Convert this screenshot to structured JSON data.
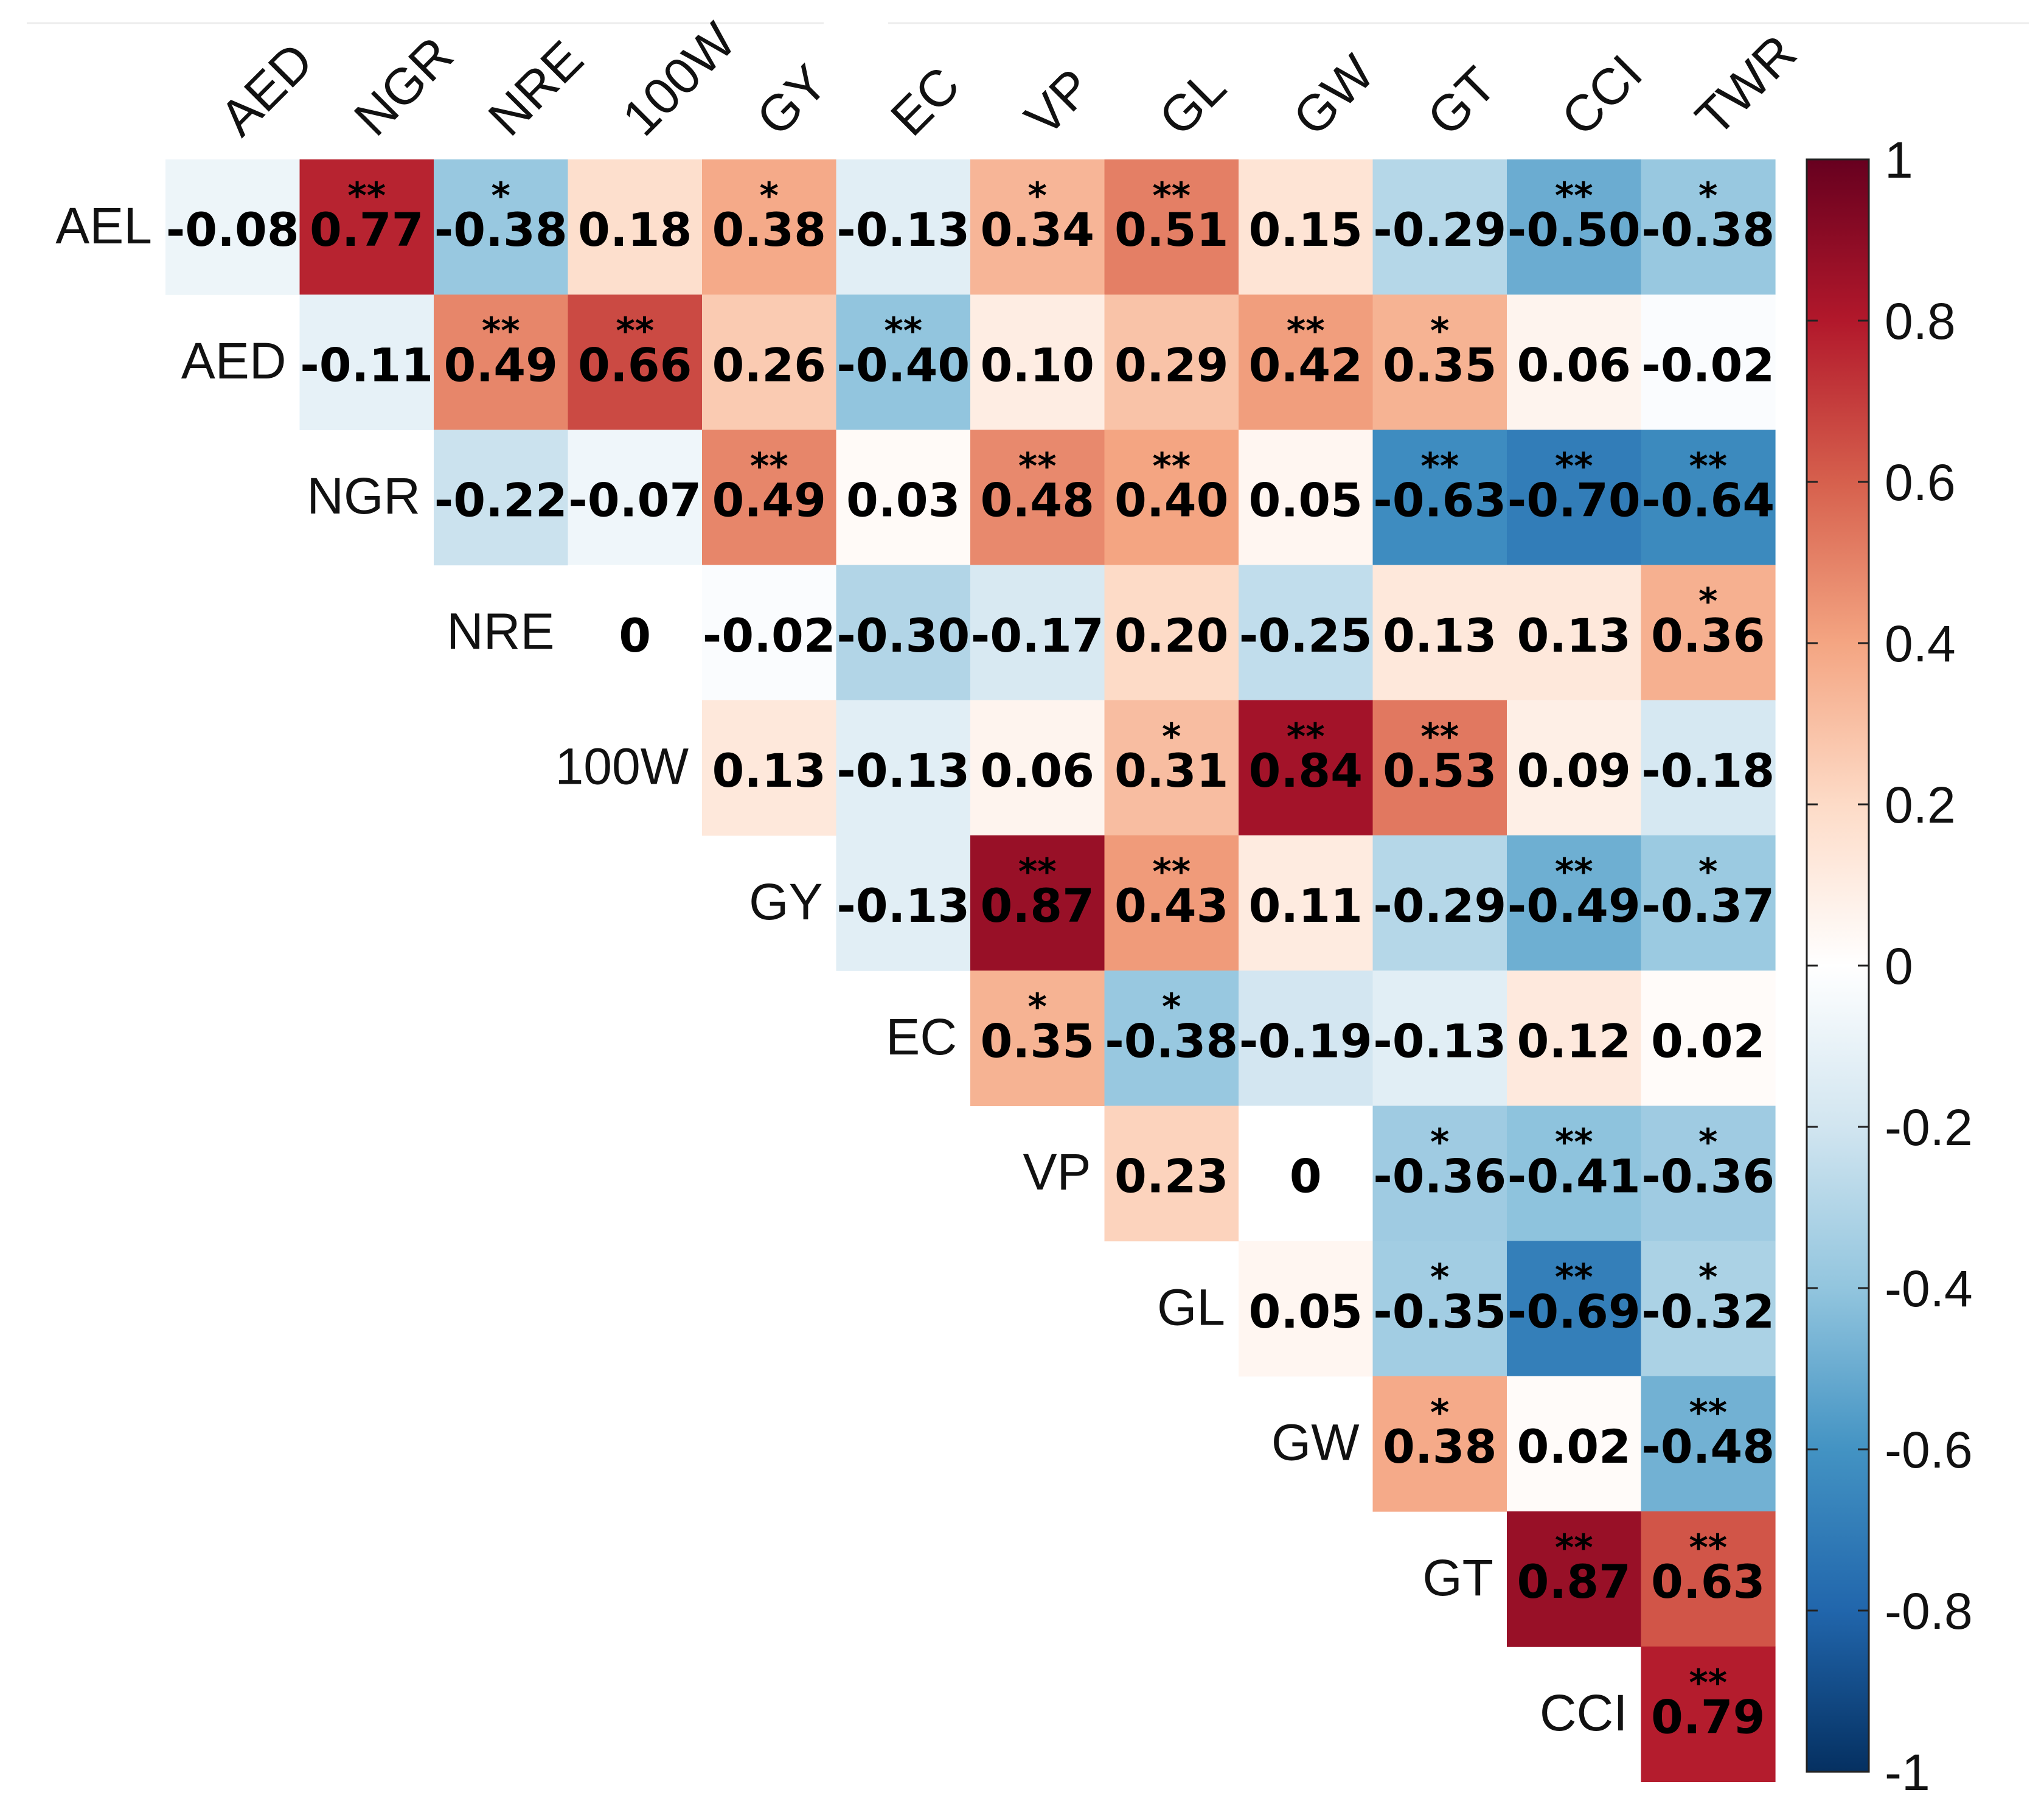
{
  "chart_data": {
    "type": "heatmap",
    "title": "",
    "row_labels": [
      "AEL",
      "AED",
      "NGR",
      "NRE",
      "100W",
      "GY",
      "EC",
      "VP",
      "GL",
      "GW",
      "GT",
      "CCI"
    ],
    "col_labels": [
      "AED",
      "NGR",
      "NRE",
      "100W",
      "GY",
      "EC",
      "VP",
      "GL",
      "GW",
      "GT",
      "CCI",
      "TWR"
    ],
    "cells": [
      [
        {
          "v": -0.08,
          "t": "-0.08",
          "s": ""
        },
        {
          "v": 0.77,
          "t": "0.77",
          "s": "**"
        },
        {
          "v": -0.38,
          "t": "-0.38",
          "s": "*"
        },
        {
          "v": 0.18,
          "t": "0.18",
          "s": ""
        },
        {
          "v": 0.38,
          "t": "0.38",
          "s": "*"
        },
        {
          "v": -0.13,
          "t": "-0.13",
          "s": ""
        },
        {
          "v": 0.34,
          "t": "0.34",
          "s": "*"
        },
        {
          "v": 0.51,
          "t": "0.51",
          "s": "**"
        },
        {
          "v": 0.15,
          "t": "0.15",
          "s": ""
        },
        {
          "v": -0.29,
          "t": "-0.29",
          "s": ""
        },
        {
          "v": -0.5,
          "t": "-0.50",
          "s": "**"
        },
        {
          "v": -0.38,
          "t": "-0.38",
          "s": "*"
        }
      ],
      [
        {
          "v": -0.11,
          "t": "-0.11",
          "s": ""
        },
        {
          "v": 0.49,
          "t": "0.49",
          "s": "**"
        },
        {
          "v": 0.66,
          "t": "0.66",
          "s": "**"
        },
        {
          "v": 0.26,
          "t": "0.26",
          "s": ""
        },
        {
          "v": -0.4,
          "t": "-0.40",
          "s": "**"
        },
        {
          "v": 0.1,
          "t": "0.10",
          "s": ""
        },
        {
          "v": 0.29,
          "t": "0.29",
          "s": ""
        },
        {
          "v": 0.42,
          "t": "0.42",
          "s": "**"
        },
        {
          "v": 0.35,
          "t": "0.35",
          "s": "*"
        },
        {
          "v": 0.06,
          "t": "0.06",
          "s": ""
        },
        {
          "v": -0.02,
          "t": "-0.02",
          "s": ""
        }
      ],
      [
        {
          "v": -0.22,
          "t": "-0.22",
          "s": ""
        },
        {
          "v": -0.07,
          "t": "-0.07",
          "s": ""
        },
        {
          "v": 0.49,
          "t": "0.49",
          "s": "**"
        },
        {
          "v": 0.03,
          "t": "0.03",
          "s": ""
        },
        {
          "v": 0.48,
          "t": "0.48",
          "s": "**"
        },
        {
          "v": 0.4,
          "t": "0.40",
          "s": "**"
        },
        {
          "v": 0.05,
          "t": "0.05",
          "s": ""
        },
        {
          "v": -0.63,
          "t": "-0.63",
          "s": "**"
        },
        {
          "v": -0.7,
          "t": "-0.70",
          "s": "**"
        },
        {
          "v": -0.64,
          "t": "-0.64",
          "s": "**"
        }
      ],
      [
        {
          "v": 0,
          "t": "0",
          "s": ""
        },
        {
          "v": -0.02,
          "t": "-0.02",
          "s": ""
        },
        {
          "v": -0.3,
          "t": "-0.30",
          "s": ""
        },
        {
          "v": -0.17,
          "t": "-0.17",
          "s": ""
        },
        {
          "v": 0.2,
          "t": "0.20",
          "s": ""
        },
        {
          "v": -0.25,
          "t": "-0.25",
          "s": ""
        },
        {
          "v": 0.13,
          "t": "0.13",
          "s": ""
        },
        {
          "v": 0.13,
          "t": "0.13",
          "s": ""
        },
        {
          "v": 0.36,
          "t": "0.36",
          "s": "*"
        }
      ],
      [
        {
          "v": 0.13,
          "t": "0.13",
          "s": ""
        },
        {
          "v": -0.13,
          "t": "-0.13",
          "s": ""
        },
        {
          "v": 0.06,
          "t": "0.06",
          "s": ""
        },
        {
          "v": 0.31,
          "t": "0.31",
          "s": "*"
        },
        {
          "v": 0.84,
          "t": "0.84",
          "s": "**"
        },
        {
          "v": 0.53,
          "t": "0.53",
          "s": "**"
        },
        {
          "v": 0.09,
          "t": "0.09",
          "s": ""
        },
        {
          "v": -0.18,
          "t": "-0.18",
          "s": ""
        }
      ],
      [
        {
          "v": -0.13,
          "t": "-0.13",
          "s": ""
        },
        {
          "v": 0.87,
          "t": "0.87",
          "s": "**"
        },
        {
          "v": 0.43,
          "t": "0.43",
          "s": "**"
        },
        {
          "v": 0.11,
          "t": "0.11",
          "s": ""
        },
        {
          "v": -0.29,
          "t": "-0.29",
          "s": ""
        },
        {
          "v": -0.49,
          "t": "-0.49",
          "s": "**"
        },
        {
          "v": -0.37,
          "t": "-0.37",
          "s": "*"
        }
      ],
      [
        {
          "v": 0.35,
          "t": "0.35",
          "s": "*"
        },
        {
          "v": -0.38,
          "t": "-0.38",
          "s": "*"
        },
        {
          "v": -0.19,
          "t": "-0.19",
          "s": ""
        },
        {
          "v": -0.13,
          "t": "-0.13",
          "s": ""
        },
        {
          "v": 0.12,
          "t": "0.12",
          "s": ""
        },
        {
          "v": 0.02,
          "t": "0.02",
          "s": ""
        }
      ],
      [
        {
          "v": 0.23,
          "t": "0.23",
          "s": ""
        },
        {
          "v": 0,
          "t": "0",
          "s": ""
        },
        {
          "v": -0.36,
          "t": "-0.36",
          "s": "*"
        },
        {
          "v": -0.41,
          "t": "-0.41",
          "s": "**"
        },
        {
          "v": -0.36,
          "t": "-0.36",
          "s": "*"
        }
      ],
      [
        {
          "v": 0.05,
          "t": "0.05",
          "s": ""
        },
        {
          "v": -0.35,
          "t": "-0.35",
          "s": "*"
        },
        {
          "v": -0.69,
          "t": "-0.69",
          "s": "**"
        },
        {
          "v": -0.32,
          "t": "-0.32",
          "s": "*"
        }
      ],
      [
        {
          "v": 0.38,
          "t": "0.38",
          "s": "*"
        },
        {
          "v": 0.02,
          "t": "0.02",
          "s": ""
        },
        {
          "v": -0.48,
          "t": "-0.48",
          "s": "**"
        }
      ],
      [
        {
          "v": 0.87,
          "t": "0.87",
          "s": "**"
        },
        {
          "v": 0.63,
          "t": "0.63",
          "s": "**"
        }
      ],
      [
        {
          "v": 0.79,
          "t": "0.79",
          "s": "**"
        }
      ]
    ],
    "value_range": [
      -1,
      1
    ],
    "colorbar": {
      "ticks": [
        1,
        0.8,
        0.6,
        0.4,
        0.2,
        0,
        -0.2,
        -0.4,
        -0.6,
        -0.8,
        -1
      ],
      "tick_labels": [
        "1",
        "0.8",
        "0.6",
        "0.4",
        "0.2",
        "0",
        "-0.2",
        "-0.4",
        "-0.6",
        "-0.8",
        "-1"
      ],
      "colors": [
        "#67001f",
        "#b2182b",
        "#d6604d",
        "#f4a582",
        "#fddbc7",
        "#ffffff",
        "#d1e5f0",
        "#92c5de",
        "#4393c3",
        "#2166ac",
        "#053061"
      ]
    },
    "legend_position": "right"
  }
}
